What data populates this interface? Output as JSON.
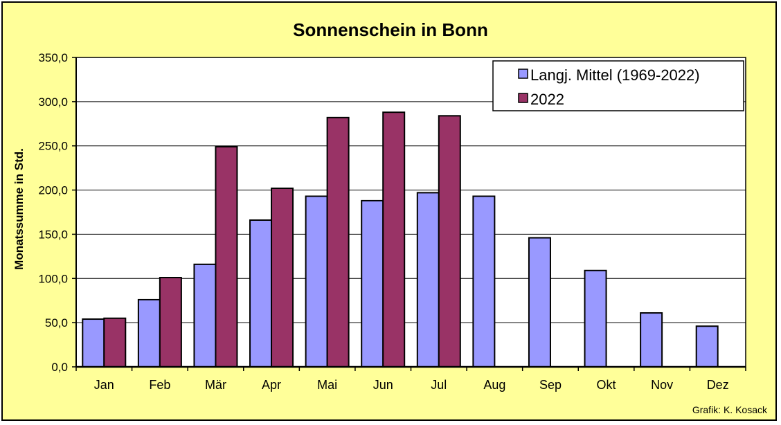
{
  "chart_data": {
    "type": "bar",
    "title": "Sonnenschein in Bonn",
    "ylabel": "Monatssumme in Std.",
    "xlabel": "",
    "ylim": [
      0,
      350
    ],
    "yticks": [
      "0,0",
      "50,0",
      "100,0",
      "150,0",
      "200,0",
      "250,0",
      "300,0",
      "350,0"
    ],
    "grid": true,
    "legend_position": "top-right",
    "categories": [
      "Jan",
      "Feb",
      "Mär",
      "Apr",
      "Mai",
      "Jun",
      "Jul",
      "Aug",
      "Sep",
      "Okt",
      "Nov",
      "Dez"
    ],
    "series": [
      {
        "name": "Langj. Mittel (1969-2022)",
        "color": "#9999ff",
        "values": [
          54,
          76,
          116,
          166,
          193,
          188,
          197,
          193,
          146,
          109,
          61,
          46
        ]
      },
      {
        "name": "2022",
        "color": "#993366",
        "values": [
          55,
          101,
          249,
          202,
          282,
          288,
          284,
          null,
          null,
          null,
          null,
          null
        ]
      }
    ]
  },
  "credit": "Grafik:  K. Kosack",
  "colors": {
    "background": "#ffff99",
    "plot": "#ffffff",
    "text": "#000000"
  }
}
